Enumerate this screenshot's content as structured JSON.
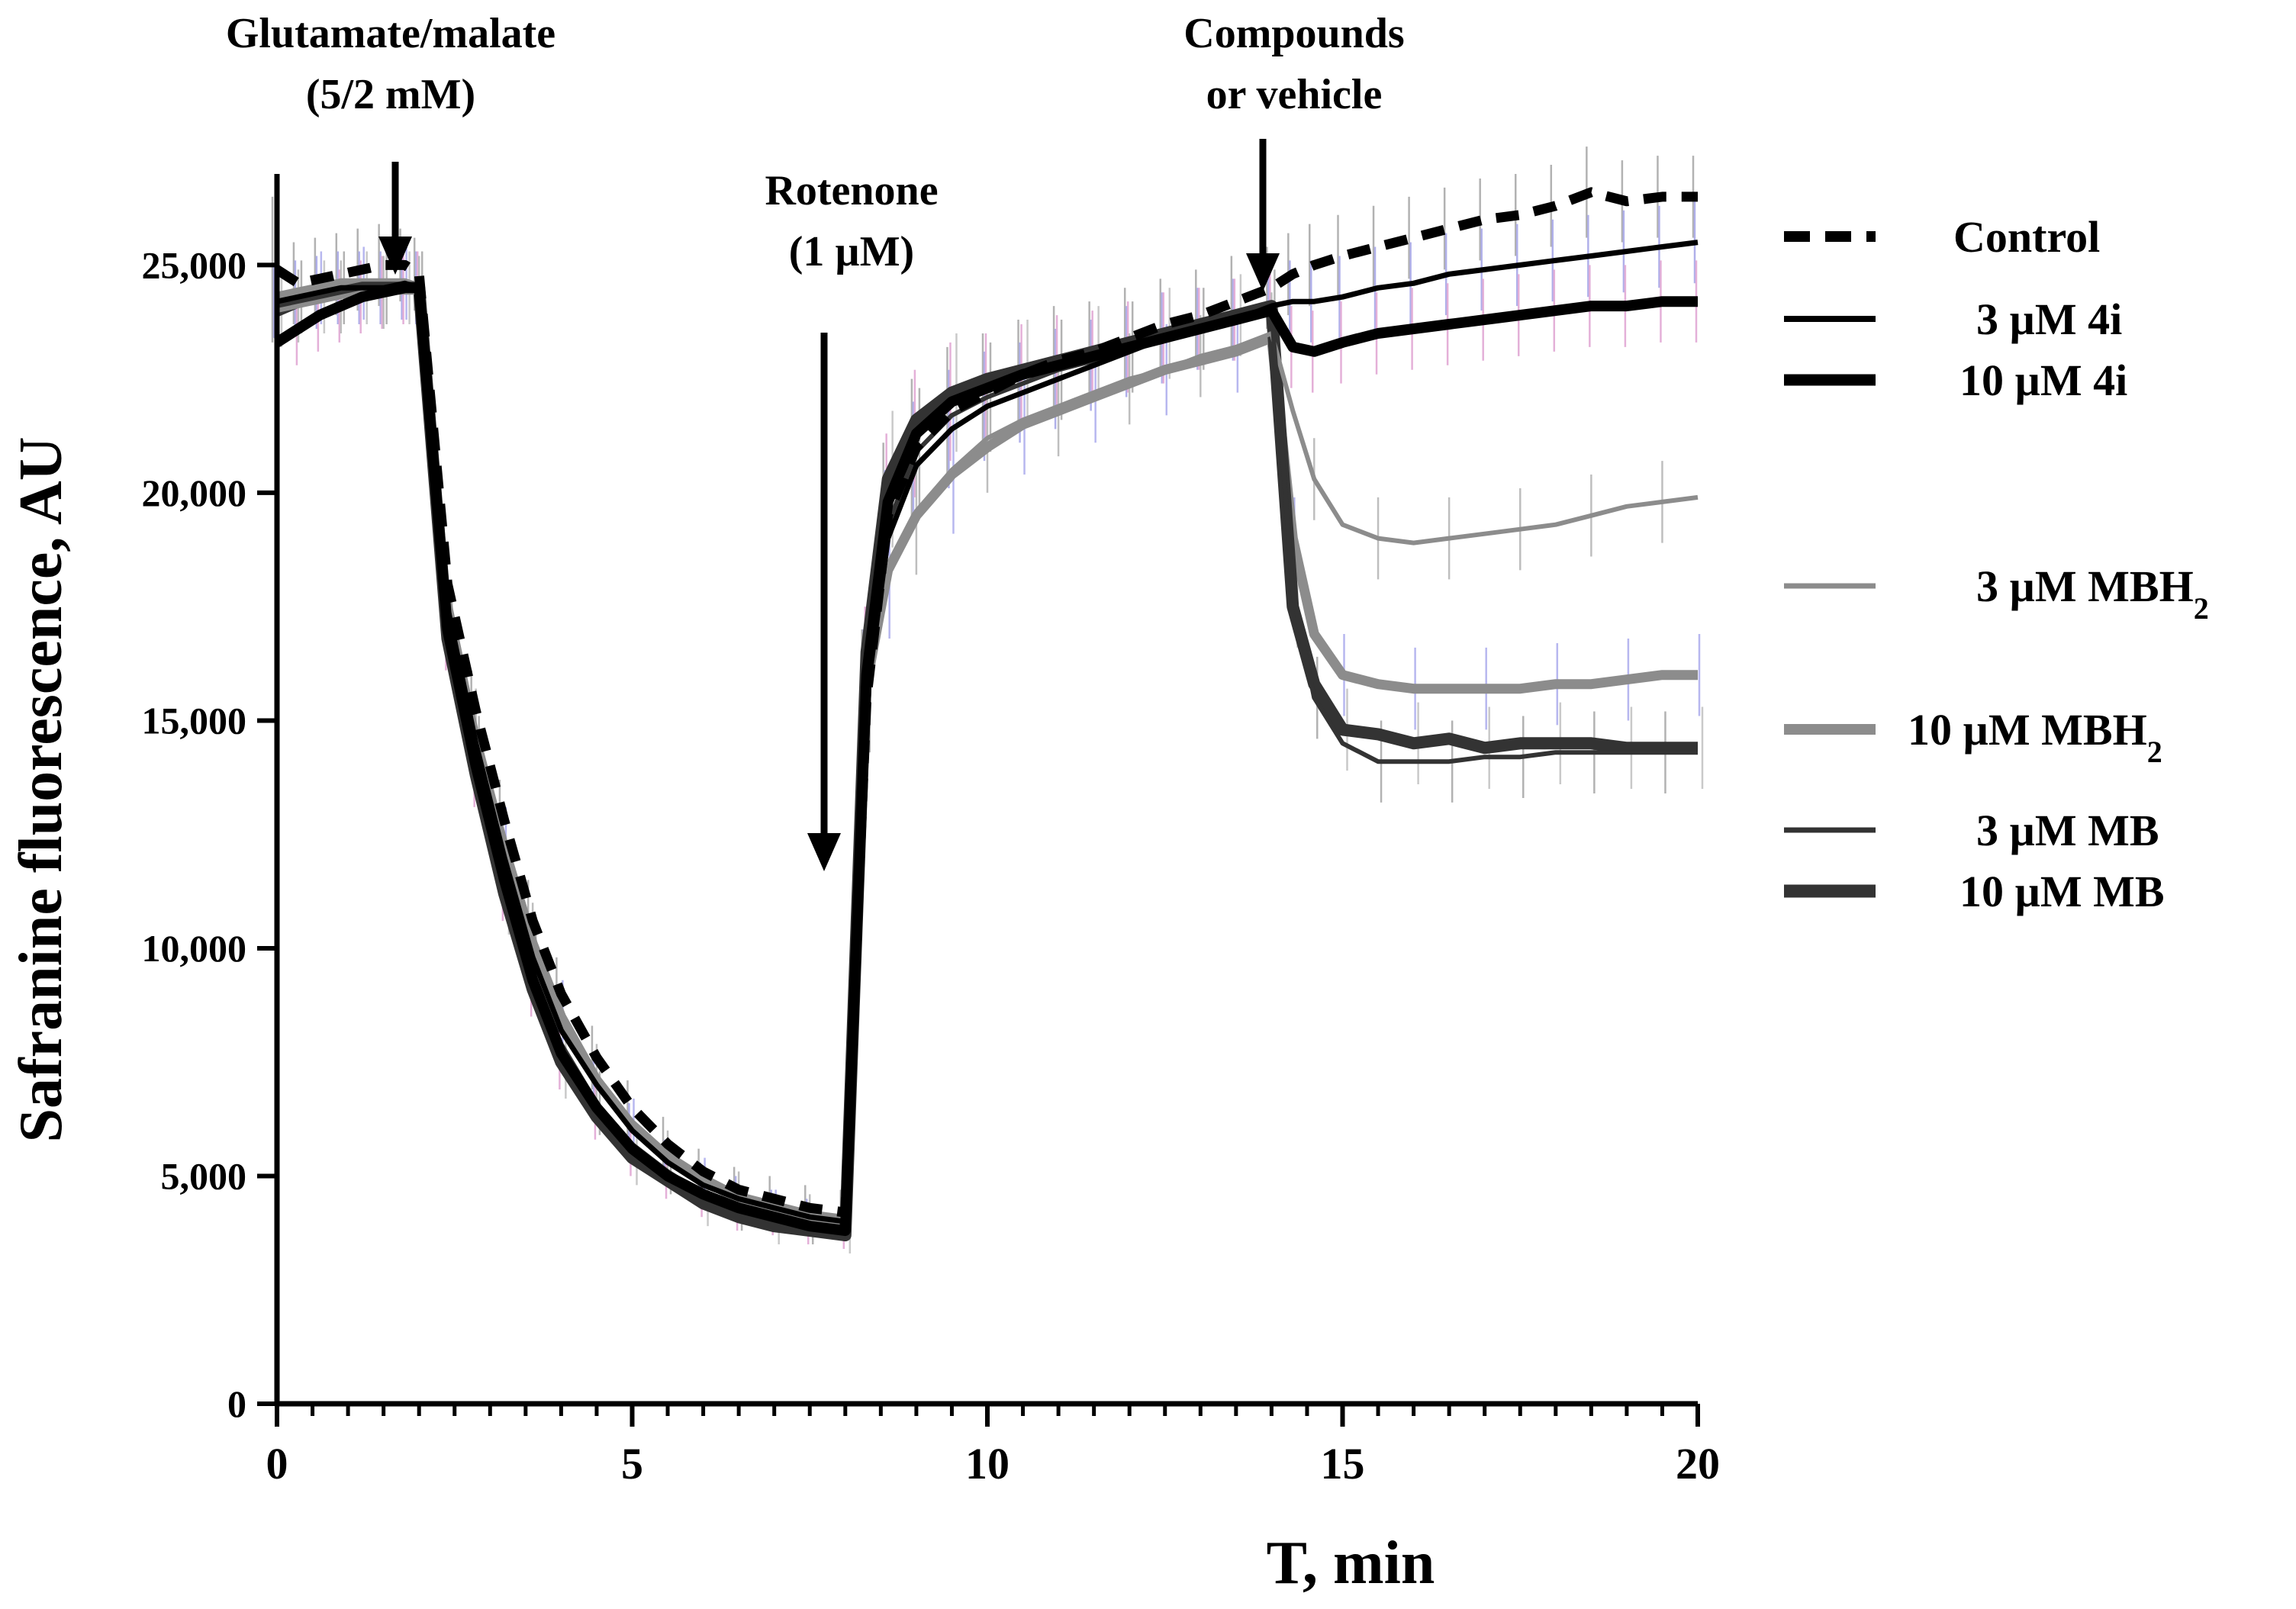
{
  "chart_data": {
    "type": "line",
    "xlabel": "T, min",
    "ylabel": "Safranine fluorescence, AU",
    "xlim": [
      0,
      20
    ],
    "ylim": [
      0,
      27000
    ],
    "x_ticks": [
      0,
      5,
      10,
      15,
      20
    ],
    "x_tick_labels": [
      "0",
      "5",
      "10",
      "15",
      "20"
    ],
    "y_ticks": [
      0,
      5000,
      10000,
      15000,
      20000,
      25000
    ],
    "y_tick_labels": [
      "0",
      "5,000",
      "10,000",
      "15,000",
      "20,000",
      "25,000"
    ],
    "annotations": [
      {
        "id": "glutamate",
        "lines": [
          "Glutamate/malate",
          "(5/2 mM)"
        ],
        "x": 1.7
      },
      {
        "id": "rotenone",
        "lines": [
          "Rotenone",
          "(1 µM)"
        ],
        "x": 7.8
      },
      {
        "id": "compounds",
        "lines": [
          "Compounds",
          "or vehicle"
        ],
        "x": 13.9
      }
    ],
    "legend": {
      "placement": "right",
      "entries": [
        {
          "label": "Control",
          "sub": ""
        },
        {
          "label": "3 µM 4i",
          "sub": ""
        },
        {
          "label": "10 µM 4i",
          "sub": ""
        },
        {
          "label": "3 µM MBH",
          "sub": "2"
        },
        {
          "label": "10 µM MBH",
          "sub": "2"
        },
        {
          "label": "3 µM MB",
          "sub": ""
        },
        {
          "label": "10 µM MB",
          "sub": ""
        }
      ]
    },
    "x": [
      0,
      0.3,
      0.6,
      0.9,
      1.2,
      1.5,
      1.8,
      2.0,
      2.4,
      2.8,
      3.2,
      3.6,
      4.0,
      4.5,
      5.0,
      5.5,
      6.0,
      6.5,
      7.0,
      7.5,
      8.0,
      8.3,
      8.6,
      9.0,
      9.5,
      10.0,
      10.5,
      11.0,
      11.5,
      12.0,
      12.5,
      13.0,
      13.5,
      14.0,
      14.3,
      14.6,
      15.0,
      15.5,
      16.0,
      16.5,
      17.0,
      17.5,
      18.0,
      18.5,
      19.0,
      19.5,
      20.0
    ],
    "series": [
      {
        "name": "Control",
        "color": "#000000",
        "width": 13,
        "dash": "30,20",
        "values": [
          24900,
          24600,
          24700,
          24800,
          24900,
          25000,
          25000,
          24800,
          18000,
          15200,
          12800,
          10600,
          9000,
          7600,
          6500,
          5700,
          5100,
          4700,
          4500,
          4300,
          4200,
          15500,
          19500,
          21000,
          21800,
          22200,
          22600,
          22900,
          23100,
          23400,
          23700,
          23900,
          24200,
          24500,
          24800,
          25000,
          25200,
          25400,
          25600,
          25800,
          26000,
          26100,
          26300,
          26600,
          26400,
          26500,
          26500
        ],
        "err": [
          1600,
          900,
          900,
          900,
          900,
          900,
          800,
          800,
          900,
          900,
          900,
          900,
          800,
          700,
          600,
          600,
          500,
          500,
          500,
          500,
          500,
          1500,
          1600,
          1500,
          1400,
          1300,
          1200,
          1200,
          1100,
          1100,
          1000,
          1000,
          1000,
          900,
          900,
          900,
          900,
          900,
          900,
          900,
          900,
          900,
          900,
          1000,
          900,
          900,
          900
        ]
      },
      {
        "name": "3 µM 4i",
        "color": "#000000",
        "width": 7,
        "dash": "",
        "values": [
          24200,
          24300,
          24400,
          24500,
          24500,
          24500,
          24600,
          24500,
          17500,
          14500,
          12000,
          9800,
          8200,
          7000,
          6000,
          5300,
          4800,
          4500,
          4300,
          4100,
          4000,
          15500,
          19000,
          20600,
          21400,
          21900,
          22200,
          22500,
          22800,
          23100,
          23400,
          23600,
          23800,
          24100,
          24200,
          24200,
          24300,
          24500,
          24600,
          24800,
          24900,
          25000,
          25100,
          25200,
          25300,
          25400,
          25500
        ],
        "err": [
          800,
          800,
          800,
          800,
          800,
          800,
          800,
          800,
          900,
          900,
          900,
          800,
          800,
          700,
          600,
          500,
          500,
          500,
          400,
          400,
          400,
          1500,
          1500,
          1400,
          1300,
          1200,
          1100,
          1100,
          1000,
          1000,
          1000,
          900,
          900,
          900,
          900,
          900,
          900,
          900,
          900,
          900,
          900,
          900,
          900,
          900,
          900,
          900,
          900
        ]
      },
      {
        "name": "10 µM 4i",
        "color": "#000000",
        "width": 14,
        "dash": "",
        "values": [
          23300,
          23600,
          23900,
          24100,
          24300,
          24400,
          24500,
          24500,
          17000,
          14000,
          11500,
          9300,
          7700,
          6500,
          5600,
          5000,
          4600,
          4300,
          4100,
          3900,
          3800,
          16000,
          19800,
          21300,
          22000,
          22300,
          22600,
          22800,
          23000,
          23200,
          23400,
          23600,
          23800,
          24000,
          23200,
          23100,
          23300,
          23500,
          23600,
          23700,
          23800,
          23900,
          24000,
          24100,
          24100,
          24200,
          24200
        ],
        "err": [
          800,
          800,
          800,
          800,
          800,
          800,
          800,
          800,
          900,
          900,
          900,
          800,
          800,
          700,
          600,
          500,
          500,
          500,
          400,
          400,
          400,
          1500,
          1500,
          1400,
          1300,
          1200,
          1100,
          1100,
          1000,
          1000,
          1000,
          900,
          900,
          900,
          900,
          900,
          900,
          900,
          900,
          900,
          900,
          900,
          900,
          900,
          900,
          900,
          900
        ]
      },
      {
        "name": "3 µM MBH2",
        "color": "#8c8c8c",
        "width": 6,
        "dash": "",
        "values": [
          24000,
          24100,
          24200,
          24300,
          24400,
          24400,
          24400,
          24400,
          17800,
          14800,
          12400,
          10200,
          8600,
          7200,
          6200,
          5500,
          5000,
          4600,
          4400,
          4200,
          4100,
          15500,
          18200,
          19600,
          20500,
          21200,
          21600,
          21900,
          22200,
          22500,
          22700,
          23000,
          23200,
          23500,
          21800,
          20300,
          19300,
          19000,
          18900,
          19000,
          19100,
          19200,
          19300,
          19500,
          19700,
          19800,
          19900
        ],
        "err": [
          800,
          800,
          800,
          800,
          800,
          800,
          800,
          800,
          900,
          900,
          900,
          800,
          800,
          700,
          600,
          500,
          500,
          500,
          400,
          400,
          400,
          1500,
          1500,
          1400,
          1300,
          1200,
          1100,
          1100,
          1000,
          1000,
          1000,
          900,
          900,
          900,
          900,
          900,
          900,
          900,
          900,
          900,
          900,
          900,
          900,
          900,
          900,
          900,
          900
        ]
      },
      {
        "name": "10 µM MBH2",
        "color": "#8c8c8c",
        "width": 13,
        "dash": "",
        "values": [
          24300,
          24400,
          24500,
          24600,
          24600,
          24600,
          24600,
          24500,
          17200,
          14500,
          12200,
          10100,
          8500,
          7100,
          6100,
          5400,
          4900,
          4500,
          4300,
          4100,
          4000,
          15800,
          18300,
          19500,
          20400,
          21000,
          21500,
          21800,
          22100,
          22400,
          22700,
          22900,
          23100,
          23400,
          19000,
          16900,
          16000,
          15800,
          15700,
          15700,
          15700,
          15700,
          15800,
          15800,
          15900,
          16000,
          16000
        ],
        "err": [
          800,
          800,
          800,
          800,
          800,
          800,
          800,
          800,
          900,
          900,
          900,
          800,
          800,
          700,
          600,
          500,
          500,
          500,
          400,
          400,
          400,
          1500,
          1500,
          1400,
          1300,
          1200,
          1100,
          1100,
          1000,
          1000,
          1000,
          900,
          900,
          900,
          900,
          900,
          900,
          900,
          900,
          900,
          900,
          900,
          900,
          900,
          900,
          900,
          900
        ]
      },
      {
        "name": "3 µM MB",
        "color": "#333333",
        "width": 6,
        "dash": "",
        "values": [
          24200,
          24300,
          24400,
          24500,
          24500,
          24500,
          24500,
          24500,
          17300,
          14200,
          11700,
          9500,
          7900,
          6600,
          5700,
          5100,
          4600,
          4300,
          4100,
          3900,
          3800,
          15800,
          19300,
          20900,
          21700,
          22100,
          22400,
          22700,
          22900,
          23200,
          23400,
          23600,
          23800,
          24000,
          17800,
          15500,
          14500,
          14100,
          14100,
          14100,
          14200,
          14200,
          14300,
          14300,
          14300,
          14300,
          14300
        ],
        "err": [
          800,
          800,
          800,
          800,
          800,
          800,
          800,
          800,
          900,
          900,
          900,
          800,
          800,
          700,
          600,
          500,
          500,
          500,
          400,
          400,
          400,
          1500,
          1500,
          1400,
          1300,
          1200,
          1100,
          1100,
          1000,
          1000,
          1000,
          900,
          900,
          900,
          900,
          900,
          900,
          900,
          900,
          900,
          900,
          900,
          900,
          900,
          900,
          900,
          900
        ]
      },
      {
        "name": "10 µM MB",
        "color": "#333333",
        "width": 16,
        "dash": "",
        "values": [
          24000,
          24200,
          24300,
          24400,
          24500,
          24500,
          24500,
          24500,
          16800,
          13800,
          11200,
          9100,
          7500,
          6300,
          5400,
          4900,
          4400,
          4100,
          3900,
          3800,
          3700,
          16500,
          20300,
          21600,
          22200,
          22500,
          22700,
          22900,
          23100,
          23300,
          23500,
          23700,
          23900,
          24100,
          17500,
          15800,
          14800,
          14700,
          14500,
          14600,
          14400,
          14500,
          14500,
          14500,
          14400,
          14400,
          14400
        ],
        "err": [
          800,
          800,
          800,
          800,
          800,
          800,
          800,
          800,
          900,
          900,
          900,
          800,
          800,
          700,
          600,
          500,
          500,
          500,
          400,
          400,
          400,
          1500,
          1500,
          1400,
          1300,
          1200,
          1100,
          1100,
          1000,
          1000,
          1000,
          900,
          900,
          900,
          900,
          900,
          900,
          900,
          900,
          900,
          900,
          900,
          900,
          900,
          900,
          900,
          900
        ]
      }
    ]
  }
}
